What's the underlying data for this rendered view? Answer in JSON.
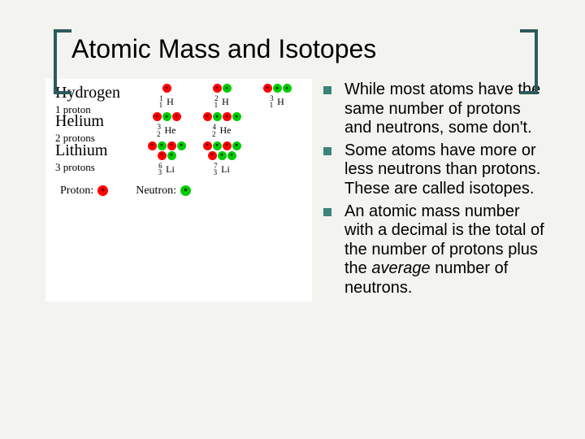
{
  "slide": {
    "background_color": "#f3f4f0",
    "title": "Atomic Mass and Isotopes",
    "title_color": "#000000",
    "bracket_color": "#2d5a5a",
    "bullet_color": "#3a847a"
  },
  "diagram": {
    "proton_color": "#ff0000",
    "neutron_color": "#00cc00",
    "plus_color": "#000000",
    "circle_color": "#000000",
    "elements": [
      {
        "name": "Hydrogen",
        "sub": "1 proton",
        "isotopes": [
          {
            "label_pre": "1",
            "label_sub": "1",
            "label_sym": "H",
            "p": 1,
            "n": 0
          },
          {
            "label_pre": "2",
            "label_sub": "1",
            "label_sym": "H",
            "p": 1,
            "n": 1
          },
          {
            "label_pre": "3",
            "label_sub": "1",
            "label_sym": "H",
            "p": 1,
            "n": 2
          }
        ]
      },
      {
        "name": "Helium",
        "sub": "2 protons",
        "isotopes": [
          {
            "label_pre": "3",
            "label_sub": "2",
            "label_sym": "He",
            "p": 2,
            "n": 1
          },
          {
            "label_pre": "4",
            "label_sub": "2",
            "label_sym": "He",
            "p": 2,
            "n": 2
          }
        ]
      },
      {
        "name": "Lithium",
        "sub": "3 protons",
        "isotopes": [
          {
            "label_pre": "6",
            "label_sub": "3",
            "label_sym": "Li",
            "p": 3,
            "n": 3
          },
          {
            "label_pre": "7",
            "label_sub": "3",
            "label_sym": "Li",
            "p": 3,
            "n": 4
          }
        ]
      }
    ],
    "legend_proton": "Proton:",
    "legend_neutron": "Neutron:"
  },
  "bullets": [
    "While most atoms have the same number of protons and neutrons, some don't.",
    "Some atoms have more or less neutrons than protons. These are called isotopes.",
    "An atomic mass number with a decimal is the total of the number of protons plus the <em>average</em> number of neutrons."
  ]
}
